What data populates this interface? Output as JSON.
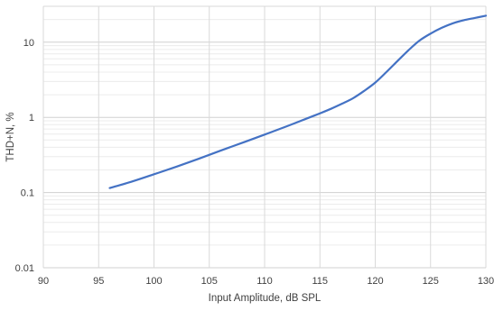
{
  "chart_data": {
    "type": "line",
    "title": "",
    "xlabel": "Input Amplitude, dB SPL",
    "ylabel": "THD+N, %",
    "xlim": [
      90,
      130
    ],
    "ylim": [
      0.01,
      30
    ],
    "yscale": "log",
    "x_ticks": [
      "90",
      "95",
      "100",
      "105",
      "110",
      "115",
      "120",
      "125",
      "130"
    ],
    "y_ticks": [
      "0.01",
      "0.1",
      "1",
      "10"
    ],
    "grid": "on (major and minor horizontal, major vertical)",
    "legend": "none",
    "series": [
      {
        "color": "#4472c4",
        "x": [
          96,
          98,
          100,
          102,
          104,
          106,
          108,
          110,
          112,
          114,
          115,
          116,
          117,
          118,
          119,
          120,
          121,
          122,
          123,
          124,
          125,
          126,
          127,
          128,
          129,
          130
        ],
        "y": [
          0.115,
          0.14,
          0.175,
          0.22,
          0.28,
          0.36,
          0.46,
          0.59,
          0.76,
          0.99,
          1.13,
          1.3,
          1.52,
          1.8,
          2.25,
          2.9,
          4.0,
          5.6,
          7.8,
          10.5,
          13.0,
          15.5,
          17.8,
          19.6,
          21.0,
          22.5
        ]
      }
    ]
  }
}
